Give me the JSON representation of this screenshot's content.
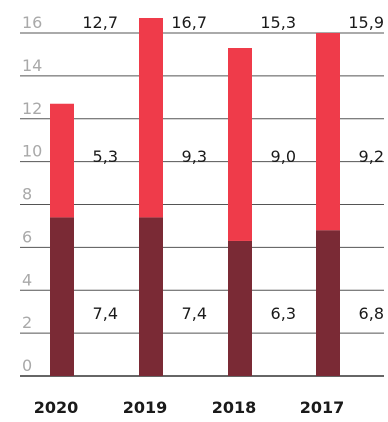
{
  "chart_data": {
    "type": "bar",
    "stacked": true,
    "categories": [
      "2020",
      "2019",
      "2018",
      "2017"
    ],
    "series": [
      {
        "values": [
          7.4,
          7.4,
          6.3,
          6.8
        ],
        "color": "#7a2a35"
      },
      {
        "values": [
          5.3,
          9.3,
          9.0,
          9.2
        ],
        "color": "#ef3b4a"
      }
    ],
    "totals": [
      "12,7",
      "16,7",
      "15,3",
      "15,9"
    ],
    "bottom_labels": [
      "7,4",
      "7,4",
      "6,3",
      "6,8"
    ],
    "top_labels": [
      "5,3",
      "9,3",
      "9,0",
      "9,2"
    ],
    "ylim": [
      0,
      16
    ],
    "yticks": [
      "0",
      "2",
      "4",
      "6",
      "8",
      "10",
      "12",
      "14",
      "16"
    ],
    "grid": true,
    "title": "",
    "xlabel": "",
    "ylabel": ""
  }
}
